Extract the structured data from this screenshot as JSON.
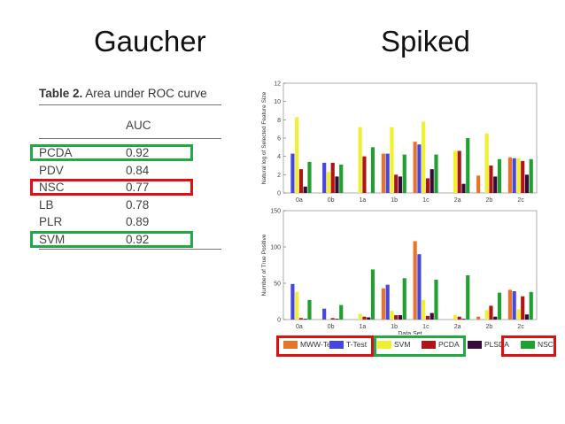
{
  "headings": {
    "left": "Gaucher",
    "right": "Spiked"
  },
  "table": {
    "caption_bold": "Table 2.",
    "caption_rest": " Area under ROC curve",
    "column_header": "AUC",
    "rows": [
      {
        "label": "PCDA",
        "value": "0.92",
        "highlight": "green"
      },
      {
        "label": "PDV",
        "value": "0.84",
        "highlight": ""
      },
      {
        "label": "NSC",
        "value": "0.77",
        "highlight": "red"
      },
      {
        "label": "LB",
        "value": "0.78",
        "highlight": ""
      },
      {
        "label": "PLR",
        "value": "0.89",
        "highlight": ""
      },
      {
        "label": "SVM",
        "value": "0.92",
        "highlight": "green"
      }
    ]
  },
  "colors": {
    "highlight_green": "#22a845",
    "highlight_red": "#dd1111"
  },
  "chart_data": [
    {
      "type": "bar",
      "ylabel": "Natural log of Selected Feature Size",
      "xlabel": "",
      "ylim": [
        0,
        12
      ],
      "yticks": [
        0,
        2,
        4,
        6,
        8,
        10,
        12
      ],
      "categories": [
        "0a",
        "0b",
        "1a",
        "1b",
        "1c",
        "2a",
        "2b",
        "2c"
      ],
      "series": [
        {
          "name": "MWW-Test",
          "color": "#e8742c",
          "values": [
            0,
            0,
            0,
            4.3,
            5.6,
            0,
            1.9,
            3.9
          ]
        },
        {
          "name": "T-Test",
          "color": "#4646e0",
          "values": [
            4.3,
            3.3,
            0,
            4.3,
            5.3,
            0,
            0,
            3.8
          ]
        },
        {
          "name": "SVM",
          "color": "#f0f030",
          "values": [
            8.3,
            2.3,
            7.2,
            7.2,
            7.8,
            4.6,
            6.5,
            3.8
          ]
        },
        {
          "name": "PCDA",
          "color": "#b01515",
          "values": [
            2.6,
            3.3,
            4.0,
            2.0,
            1.6,
            4.6,
            3.0,
            3.5
          ]
        },
        {
          "name": "PLSDA",
          "color": "#3a0a3a",
          "values": [
            0.7,
            1.8,
            0,
            1.8,
            2.6,
            1.0,
            1.8,
            2.0
          ]
        },
        {
          "name": "NSC",
          "color": "#20a030",
          "values": [
            3.4,
            3.1,
            5.0,
            4.2,
            4.2,
            6.0,
            3.7,
            3.7
          ]
        }
      ]
    },
    {
      "type": "bar",
      "ylabel": "Number of True Positive",
      "xlabel": "Data Set",
      "ylim": [
        0,
        150
      ],
      "yticks": [
        0,
        50,
        100,
        150
      ],
      "categories": [
        "0a",
        "0b",
        "1a",
        "1b",
        "1c",
        "2a",
        "2b",
        "2c"
      ],
      "series": [
        {
          "name": "MWW-Test",
          "color": "#e8742c",
          "values": [
            0,
            0,
            0,
            43,
            108,
            0,
            4,
            41
          ]
        },
        {
          "name": "T-Test",
          "color": "#4646e0",
          "values": [
            49,
            15,
            0,
            48,
            90,
            0,
            0,
            39
          ]
        },
        {
          "name": "SVM",
          "color": "#f0f030",
          "values": [
            38,
            1,
            8,
            12,
            27,
            6,
            13,
            14
          ]
        },
        {
          "name": "PCDA",
          "color": "#b01515",
          "values": [
            2,
            2,
            4,
            6,
            5,
            4,
            19,
            32
          ]
        },
        {
          "name": "PLSDA",
          "color": "#3a0a3a",
          "values": [
            1,
            1,
            3,
            6,
            9,
            1,
            4,
            7
          ]
        },
        {
          "name": "NSC",
          "color": "#20a030",
          "values": [
            27,
            20,
            69,
            57,
            55,
            61,
            37,
            38
          ]
        }
      ]
    }
  ],
  "legend": [
    {
      "label": "MWW-Test",
      "color": "#e8742c"
    },
    {
      "label": "T-Test",
      "color": "#4646e0"
    },
    {
      "label": "SVM",
      "color": "#f0f030"
    },
    {
      "label": "PCDA",
      "color": "#b01515"
    },
    {
      "label": "PLSDA",
      "color": "#3a0a3a"
    },
    {
      "label": "NSC",
      "color": "#20a030"
    }
  ]
}
